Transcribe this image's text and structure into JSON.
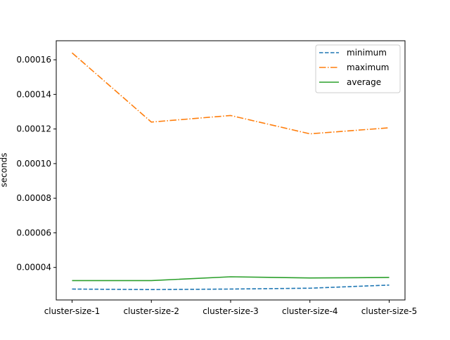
{
  "chart_data": {
    "type": "line",
    "title": "",
    "xlabel": "",
    "ylabel": "seconds",
    "categories": [
      "cluster-size-1",
      "cluster-size-2",
      "cluster-size-3",
      "cluster-size-4",
      "cluster-size-5"
    ],
    "ylim": [
      2.12e-05,
      0.000171
    ],
    "yticks": [
      4e-05,
      6e-05,
      8e-05,
      0.0001,
      0.00012,
      0.00014,
      0.00016
    ],
    "ytick_labels": [
      "0.00004",
      "0.00006",
      "0.00008",
      "0.00010",
      "0.00012",
      "0.00014",
      "0.00016"
    ],
    "grid": false,
    "legend_position": "top-right",
    "series": [
      {
        "name": "minimum",
        "color": "#1f77b4",
        "dash": "dashed",
        "values": [
          2.75e-05,
          2.72e-05,
          2.75e-05,
          2.8e-05,
          2.98e-05
        ]
      },
      {
        "name": "maximum",
        "color": "#ff7f0e",
        "dash": "dashdot",
        "values": [
          0.000164,
          0.000124,
          0.0001278,
          0.0001172,
          0.0001207
        ]
      },
      {
        "name": "average",
        "color": "#2ca02c",
        "dash": "solid",
        "values": [
          3.24e-05,
          3.24e-05,
          3.46e-05,
          3.39e-05,
          3.42e-05
        ]
      }
    ]
  }
}
